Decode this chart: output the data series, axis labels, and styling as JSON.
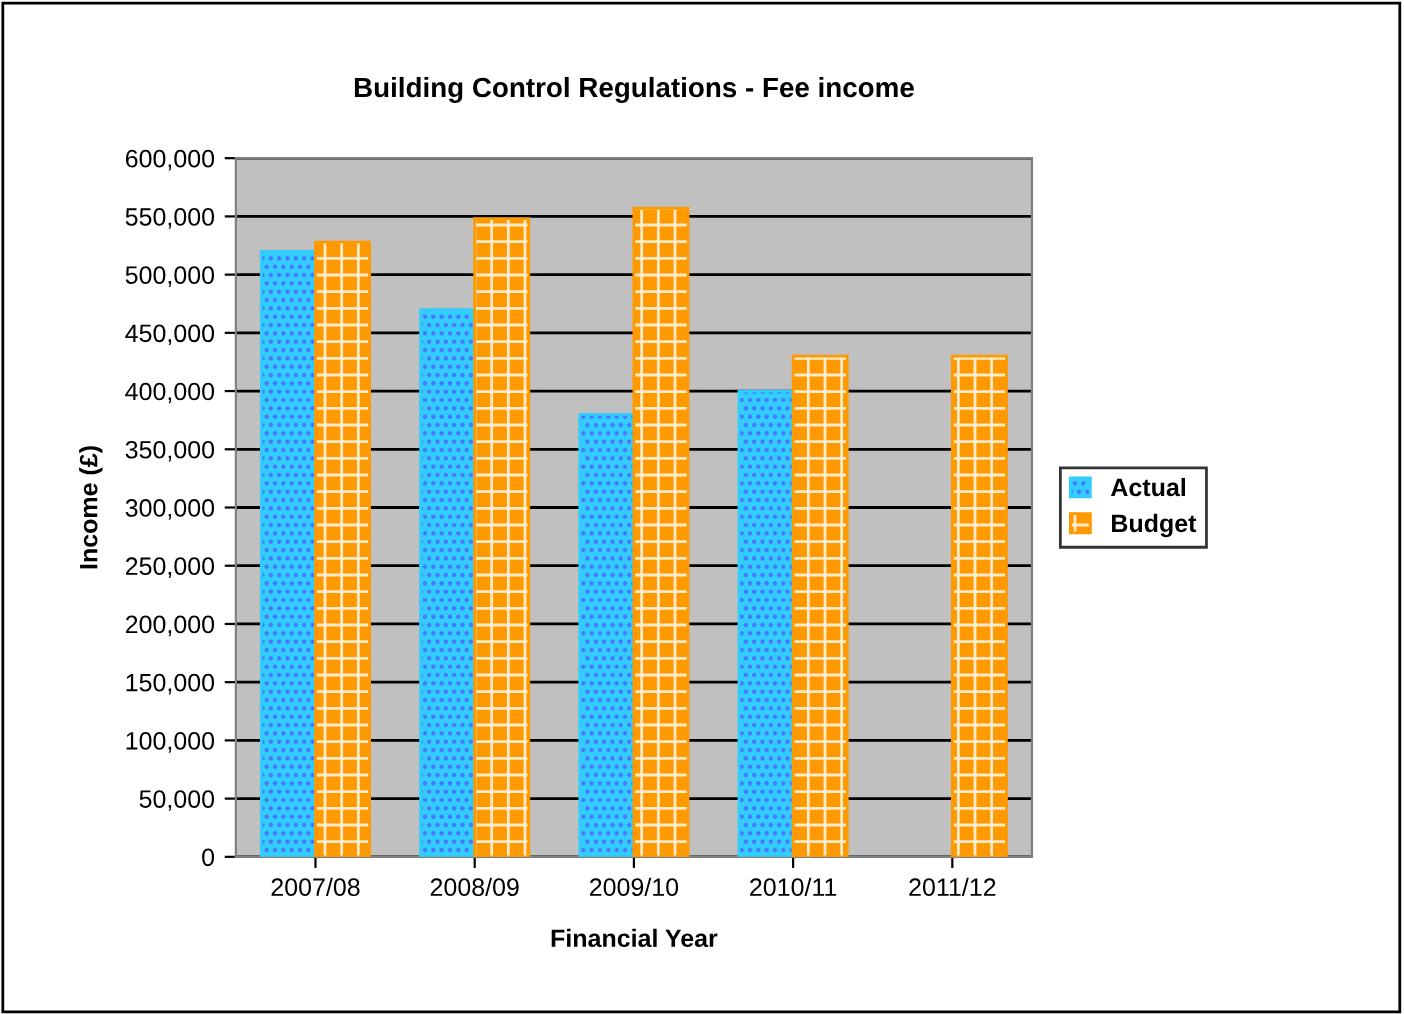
{
  "chart_data": {
    "type": "bar",
    "title": "Building Control Regulations - Fee income",
    "xlabel": "Financial Year",
    "ylabel": "Income (£)",
    "categories": [
      "2007/08",
      "2008/09",
      "2009/10",
      "2010/11",
      "2011/12"
    ],
    "series": [
      {
        "name": "Actual",
        "color": "#33ccff",
        "values": [
          520000,
          470000,
          380000,
          400000,
          null
        ]
      },
      {
        "name": "Budget",
        "color": "#ff9900",
        "values": [
          528000,
          548000,
          557000,
          430000,
          430000
        ]
      }
    ],
    "ylim": [
      0,
      600000
    ],
    "yticks": [
      {
        "value": 0,
        "label": "0"
      },
      {
        "value": 50000,
        "label": "50,000"
      },
      {
        "value": 100000,
        "label": "100,000"
      },
      {
        "value": 150000,
        "label": "150,000"
      },
      {
        "value": 200000,
        "label": "200,000"
      },
      {
        "value": 250000,
        "label": "250,000"
      },
      {
        "value": 300000,
        "label": "300,000"
      },
      {
        "value": 350000,
        "label": "350,000"
      },
      {
        "value": 400000,
        "label": "400,000"
      },
      {
        "value": 450000,
        "label": "450,000"
      },
      {
        "value": 500000,
        "label": "500,000"
      },
      {
        "value": 550000,
        "label": "550,000"
      },
      {
        "value": 600000,
        "label": "600,000"
      }
    ],
    "grid": "y",
    "legend": "right"
  }
}
